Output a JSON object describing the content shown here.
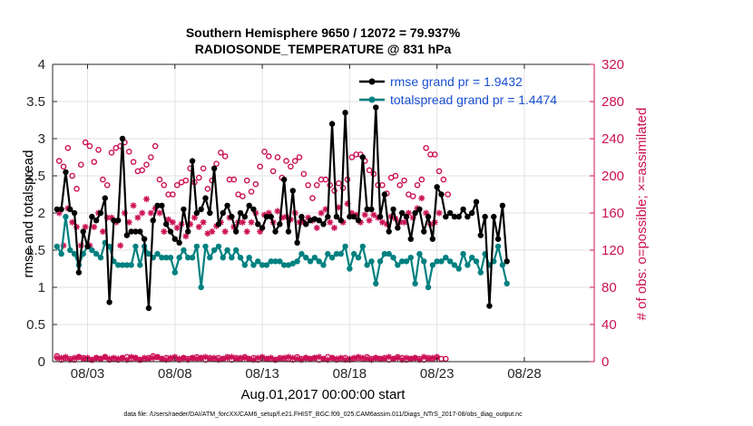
{
  "chart_data": {
    "type": "line",
    "title_line1": "Southern Hemisphere 9650 / 12072 = 79.937%",
    "title_line2": "RADIOSONDE_TEMPERATURE @ 831 hPa",
    "xlabel": "Aug.01,2017 00:00:00 start",
    "ylabel_left": "rmse and totalspread",
    "ylabel_right": "# of obs: o=possible; ×=assimilated",
    "footnote": "data file: /Users/raeder/DAI/ATM_forcXX/CAM6_setup/f.e21.FHIST_BGC.f09_025.CAM6assim.011/Diags_NTrS_2017-08/obs_diag_output.nc",
    "x_ticks": [
      "08/03",
      "08/08",
      "08/13",
      "08/18",
      "08/23",
      "08/28"
    ],
    "x_tick_days": [
      3,
      8,
      13,
      18,
      23,
      28
    ],
    "xlim_days": [
      1,
      32
    ],
    "ylim_left": [
      0,
      4
    ],
    "y_ticks_left": [
      "0",
      "0.5",
      "1",
      "1.5",
      "2",
      "2.5",
      "3",
      "3.5",
      "4"
    ],
    "ylim_right": [
      0,
      320
    ],
    "y_ticks_right": [
      "0",
      "40",
      "80",
      "120",
      "160",
      "200",
      "240",
      "280",
      "320"
    ],
    "x_start_day": 1.25,
    "x_step_days": 0.25,
    "series": [
      {
        "name": "rmse",
        "legend": "rmse grand pr = 1.9432",
        "color": "#000000",
        "values": [
          2.05,
          2.05,
          2.55,
          2.05,
          2.0,
          1.2,
          1.75,
          1.55,
          1.95,
          1.9,
          2.0,
          2.2,
          0.8,
          1.9,
          1.9,
          3.0,
          1.7,
          1.75,
          1.75,
          1.75,
          1.65,
          0.72,
          1.9,
          2.1,
          2.1,
          1.85,
          1.75,
          1.65,
          1.6,
          2.05,
          1.75,
          2.7,
          2.0,
          2.05,
          2.2,
          2.0,
          2.6,
          1.85,
          2.0,
          2.1,
          1.95,
          1.75,
          2.0,
          1.95,
          2.1,
          2.05,
          1.85,
          1.8,
          1.95,
          1.95,
          1.75,
          1.85,
          2.45,
          1.75,
          2.3,
          1.6,
          1.95,
          1.85,
          1.9,
          1.92,
          1.9,
          1.85,
          1.95,
          3.2,
          1.95,
          1.9,
          3.35,
          1.95,
          1.95,
          1.9,
          2.75,
          2.05,
          2.05,
          3.42,
          1.95,
          2.25,
          1.75,
          2.05,
          1.8,
          2.0,
          1.95,
          1.65,
          2.0,
          2.05,
          1.75,
          1.95,
          1.65,
          2.35,
          2.25,
          1.95,
          2.0,
          1.95,
          1.95,
          2.05,
          1.95,
          2.0,
          2.15,
          1.7,
          1.95,
          0.75,
          1.95,
          1.65,
          2.1,
          1.35
        ]
      },
      {
        "name": "totalspread",
        "legend": "totalspread grand pr = 1.4474",
        "color": "#008080",
        "values": [
          1.55,
          1.45,
          1.95,
          1.5,
          1.45,
          1.3,
          1.45,
          1.55,
          1.5,
          1.45,
          1.4,
          1.6,
          1.55,
          1.35,
          1.3,
          1.3,
          1.3,
          1.3,
          1.55,
          1.3,
          1.55,
          1.45,
          1.4,
          1.45,
          1.4,
          1.4,
          1.4,
          1.2,
          1.4,
          1.5,
          1.4,
          1.4,
          1.55,
          1.0,
          1.55,
          1.4,
          1.5,
          1.55,
          1.4,
          1.5,
          1.4,
          1.5,
          1.4,
          1.3,
          1.4,
          1.3,
          1.35,
          1.3,
          1.3,
          1.35,
          1.35,
          1.35,
          1.3,
          1.3,
          1.32,
          1.35,
          1.45,
          1.4,
          1.35,
          1.4,
          1.35,
          1.3,
          1.45,
          1.4,
          1.45,
          1.45,
          1.55,
          1.25,
          1.45,
          1.4,
          1.55,
          1.3,
          1.35,
          1.05,
          1.35,
          1.45,
          1.45,
          1.4,
          1.3,
          1.35,
          1.35,
          1.4,
          1.05,
          1.45,
          1.35,
          1.0,
          1.3,
          1.35,
          1.35,
          1.4,
          1.35,
          1.3,
          1.25,
          1.45,
          1.3,
          1.4,
          1.35,
          1.2,
          1.45,
          1.3,
          1.35,
          1.55,
          1.3,
          1.05
        ]
      },
      {
        "name": "possible obs",
        "color": "#cc1155",
        "values": [
          6,
          216,
          2,
          210,
          4,
          230,
          3,
          200,
          2,
          186,
          5,
          212,
          4,
          236,
          3,
          232,
          2,
          215,
          4,
          228,
          3,
          196,
          5,
          190,
          2,
          225,
          3,
          230,
          2,
          232,
          4,
          236,
          5,
          226,
          3,
          215,
          4,
          205,
          2,
          206,
          3,
          212,
          4,
          220,
          6,
          232,
          5,
          196,
          3,
          190,
          4,
          180,
          3,
          180,
          4,
          190,
          2,
          193,
          4,
          195,
          3,
          208,
          4,
          193,
          5,
          198,
          4,
          208,
          2,
          186,
          4,
          195,
          3,
          213,
          4,
          225,
          3,
          221,
          5,
          196,
          2,
          196,
          4,
          180,
          3,
          178,
          5,
          195,
          3,
          183,
          4,
          191,
          2,
          210,
          4,
          226,
          3,
          221,
          3,
          205,
          2,
          220,
          4,
          198,
          3,
          216,
          3,
          210,
          2,
          216,
          5,
          220,
          3,
          202,
          4,
          190,
          3,
          176,
          4,
          190,
          2,
          196,
          3,
          196,
          5,
          190,
          4,
          184,
          2,
          192,
          3,
          187,
          4,
          196,
          2,
          220,
          3,
          223,
          4,
          223,
          3,
          216,
          5,
          206,
          3,
          202,
          4,
          190,
          3,
          190,
          4,
          181,
          2,
          198,
          3,
          200,
          5,
          190,
          4,
          195,
          2,
          180,
          3,
          178,
          4,
          190,
          3,
          196,
          2,
          230,
          4,
          223,
          3,
          223,
          5,
          205,
          3,
          196,
          3,
          180
        ]
      },
      {
        "name": "assimilated obs",
        "color": "#cc1155",
        "values": [
          4,
          160,
          4,
          125,
          5,
          165,
          2,
          150,
          4,
          145,
          5,
          125,
          3,
          145,
          4,
          125,
          2,
          145,
          4,
          160,
          3,
          140,
          5,
          155,
          3,
          155,
          4,
          150,
          3,
          125,
          4,
          160,
          2,
          150,
          5,
          168,
          4,
          155,
          2,
          160,
          4,
          175,
          3,
          160,
          4,
          165,
          5,
          160,
          3,
          140,
          2,
          153,
          4,
          150,
          5,
          144,
          3,
          148,
          4,
          135,
          2,
          148,
          4,
          155,
          3,
          145,
          4,
          150,
          5,
          138,
          3,
          140,
          4,
          146,
          2,
          150,
          3,
          140,
          4,
          155,
          5,
          145,
          3,
          150,
          4,
          150,
          4,
          140,
          3,
          150,
          2,
          160,
          4,
          140,
          5,
          158,
          3,
          160,
          4,
          150,
          2,
          162,
          3,
          155,
          4,
          156,
          5,
          153,
          4,
          160,
          3,
          150,
          2,
          150,
          4,
          155,
          3,
          152,
          4,
          144,
          5,
          160,
          3,
          164,
          2,
          150,
          4,
          144,
          3,
          166,
          4,
          150,
          2,
          170,
          3,
          160,
          4,
          158,
          5,
          150,
          4,
          158,
          3,
          152,
          2,
          158,
          4,
          155,
          3,
          150,
          3,
          148,
          5,
          156,
          3,
          154,
          4,
          150,
          2,
          150,
          4,
          160,
          3,
          155,
          4,
          165,
          2,
          176,
          5,
          160,
          3,
          148,
          4,
          150,
          4,
          160
        ]
      }
    ]
  }
}
